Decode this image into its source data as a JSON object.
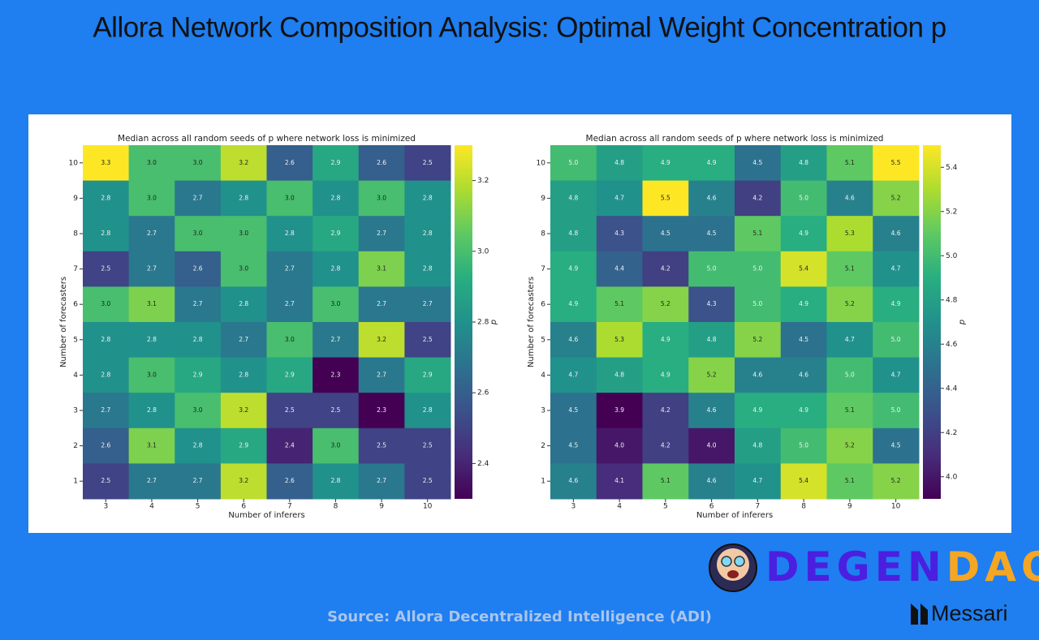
{
  "header": {
    "title": "Allora Network Composition Analysis: Optimal Weight Concentration p"
  },
  "footer": {
    "source": "Source: Allora Decentralized Intelligence (ADI)",
    "logo_parts": [
      "DEGEN",
      "DAO!"
    ],
    "brand": "Messari"
  },
  "chart_data": [
    {
      "type": "heatmap",
      "title": "Median across all random seeds of p where network loss is minimized",
      "x_label": "Number of inferers",
      "y_label": "Number of forecasters",
      "colorbar_label": "p",
      "colormap": "viridis",
      "x": [
        3,
        4,
        5,
        6,
        7,
        8,
        9,
        10
      ],
      "y": [
        10,
        9,
        8,
        7,
        6,
        5,
        4,
        3,
        2,
        1
      ],
      "values": [
        [
          3.3,
          3.0,
          3.0,
          3.2,
          2.6,
          2.9,
          2.6,
          2.5
        ],
        [
          2.8,
          3.0,
          2.7,
          2.8,
          3.0,
          2.8,
          3.0,
          2.8
        ],
        [
          2.8,
          2.7,
          3.0,
          3.0,
          2.8,
          2.9,
          2.7,
          2.8
        ],
        [
          2.5,
          2.7,
          2.6,
          3.0,
          2.7,
          2.8,
          3.1,
          2.8
        ],
        [
          3.0,
          3.1,
          2.7,
          2.8,
          2.7,
          3.0,
          2.7,
          2.7
        ],
        [
          2.8,
          2.8,
          2.8,
          2.7,
          3.0,
          2.7,
          3.2,
          2.5
        ],
        [
          2.8,
          3.0,
          2.9,
          2.8,
          2.9,
          2.3,
          2.7,
          2.9
        ],
        [
          2.7,
          2.8,
          3.0,
          3.2,
          2.5,
          2.5,
          2.3,
          2.8
        ],
        [
          2.6,
          3.1,
          2.8,
          2.9,
          2.4,
          3.0,
          2.5,
          2.5
        ],
        [
          2.5,
          2.7,
          2.7,
          3.2,
          2.6,
          2.8,
          2.7,
          2.5
        ]
      ],
      "value_labels": [
        [
          "3.3",
          "3.0",
          "3.0",
          "3.2",
          "2.6",
          "2.9",
          "2.6",
          "2.5"
        ],
        [
          "2.8",
          "3.0",
          "2.7",
          "2.8",
          "3.0",
          "2.8",
          "3.0",
          "2.8"
        ],
        [
          "2.8",
          "2.7",
          "3.0",
          "3.0",
          "2.8",
          "2.9",
          "2.7",
          "2.8"
        ],
        [
          "2.5",
          "2.7",
          "2.6",
          "3.0",
          "2.7",
          "2.8",
          "3.1",
          "2.8"
        ],
        [
          "3.0",
          "3.1",
          "2.7",
          "2.8",
          "2.7",
          "3.0",
          "2.7",
          "2.7"
        ],
        [
          "2.8",
          "2.8",
          "2.8",
          "2.7",
          "3.0",
          "2.7",
          "3.2",
          "2.5"
        ],
        [
          "2.8",
          "3.0",
          "2.9",
          "2.8",
          "2.9",
          "2.3",
          "2.7",
          "2.9"
        ],
        [
          "2.7",
          "2.8",
          "3.0",
          "3.2",
          "2.5",
          "2.5",
          "2.3",
          "2.8"
        ],
        [
          "2.6",
          "3.1",
          "2.8",
          "2.9",
          "2.4",
          "3.0",
          "2.5",
          "2.5"
        ],
        [
          "2.5",
          "2.7",
          "2.7",
          "3.2",
          "2.6",
          "2.8",
          "2.7",
          "2.5"
        ]
      ],
      "clim": [
        2.3,
        3.3
      ],
      "cticks": [
        2.4,
        2.6,
        2.8,
        {
          "value": 3,
          "label": "3.0"
        },
        3.2
      ]
    },
    {
      "type": "heatmap",
      "title": "Median across all random seeds of p where network loss is minimized",
      "x_label": "Number of inferers",
      "y_label": "Number of forecasters",
      "colorbar_label": "p",
      "colormap": "viridis",
      "x": [
        3,
        4,
        5,
        6,
        7,
        8,
        9,
        10
      ],
      "y": [
        10,
        9,
        8,
        7,
        6,
        5,
        4,
        3,
        2,
        1
      ],
      "values": [
        [
          5.0,
          4.8,
          4.9,
          4.9,
          4.5,
          4.8,
          5.1,
          5.5
        ],
        [
          4.8,
          4.7,
          5.5,
          4.6,
          4.2,
          5.0,
          4.6,
          5.2
        ],
        [
          4.8,
          4.3,
          4.5,
          4.5,
          5.1,
          4.9,
          5.3,
          4.6
        ],
        [
          4.9,
          4.4,
          4.2,
          5.0,
          5.0,
          5.4,
          5.1,
          4.7
        ],
        [
          4.9,
          5.1,
          5.2,
          4.3,
          5.0,
          4.9,
          5.2,
          4.9
        ],
        [
          4.6,
          5.3,
          4.9,
          4.8,
          5.2,
          4.5,
          4.7,
          5.0
        ],
        [
          4.7,
          4.8,
          4.9,
          5.2,
          4.6,
          4.6,
          5.0,
          4.7
        ],
        [
          4.5,
          3.9,
          4.2,
          4.6,
          4.9,
          4.9,
          5.1,
          5.0
        ],
        [
          4.5,
          4.0,
          4.2,
          4.0,
          4.8,
          5.0,
          5.2,
          4.5
        ],
        [
          4.6,
          4.1,
          5.1,
          4.6,
          4.7,
          5.4,
          5.1,
          5.2
        ]
      ],
      "value_labels": [
        [
          "5.0",
          "4.8",
          "4.9",
          "4.9",
          "4.5",
          "4.8",
          "5.1",
          "5.5"
        ],
        [
          "4.8",
          "4.7",
          "5.5",
          "4.6",
          "4.2",
          "5.0",
          "4.6",
          "5.2"
        ],
        [
          "4.8",
          "4.3",
          "4.5",
          "4.5",
          "5.1",
          "4.9",
          "5.3",
          "4.6"
        ],
        [
          "4.9",
          "4.4",
          "4.2",
          "5.0",
          "5.0",
          "5.4",
          "5.1",
          "4.7"
        ],
        [
          "4.9",
          "5.1",
          "5.2",
          "4.3",
          "5.0",
          "4.9",
          "5.2",
          "4.9"
        ],
        [
          "4.6",
          "5.3",
          "4.9",
          "4.8",
          "5.2",
          "4.5",
          "4.7",
          "5.0"
        ],
        [
          "4.7",
          "4.8",
          "4.9",
          "5.2",
          "4.6",
          "4.6",
          "5.0",
          "4.7"
        ],
        [
          "4.5",
          "3.9",
          "4.2",
          "4.6",
          "4.9",
          "4.9",
          "5.1",
          "5.0"
        ],
        [
          "4.5",
          "4.0",
          "4.2",
          "4.0",
          "4.8",
          "5.0",
          "5.2",
          "4.5"
        ],
        [
          "4.6",
          "4.1",
          "5.1",
          "4.6",
          "4.7",
          "5.4",
          "5.1",
          "5.2"
        ]
      ],
      "clim": [
        3.9,
        5.5
      ],
      "cticks": [
        {
          "value": 4,
          "label": "4.0"
        },
        4.2,
        4.4,
        4.6,
        4.8,
        {
          "value": 5,
          "label": "5.0"
        },
        5.2,
        5.4
      ]
    }
  ]
}
